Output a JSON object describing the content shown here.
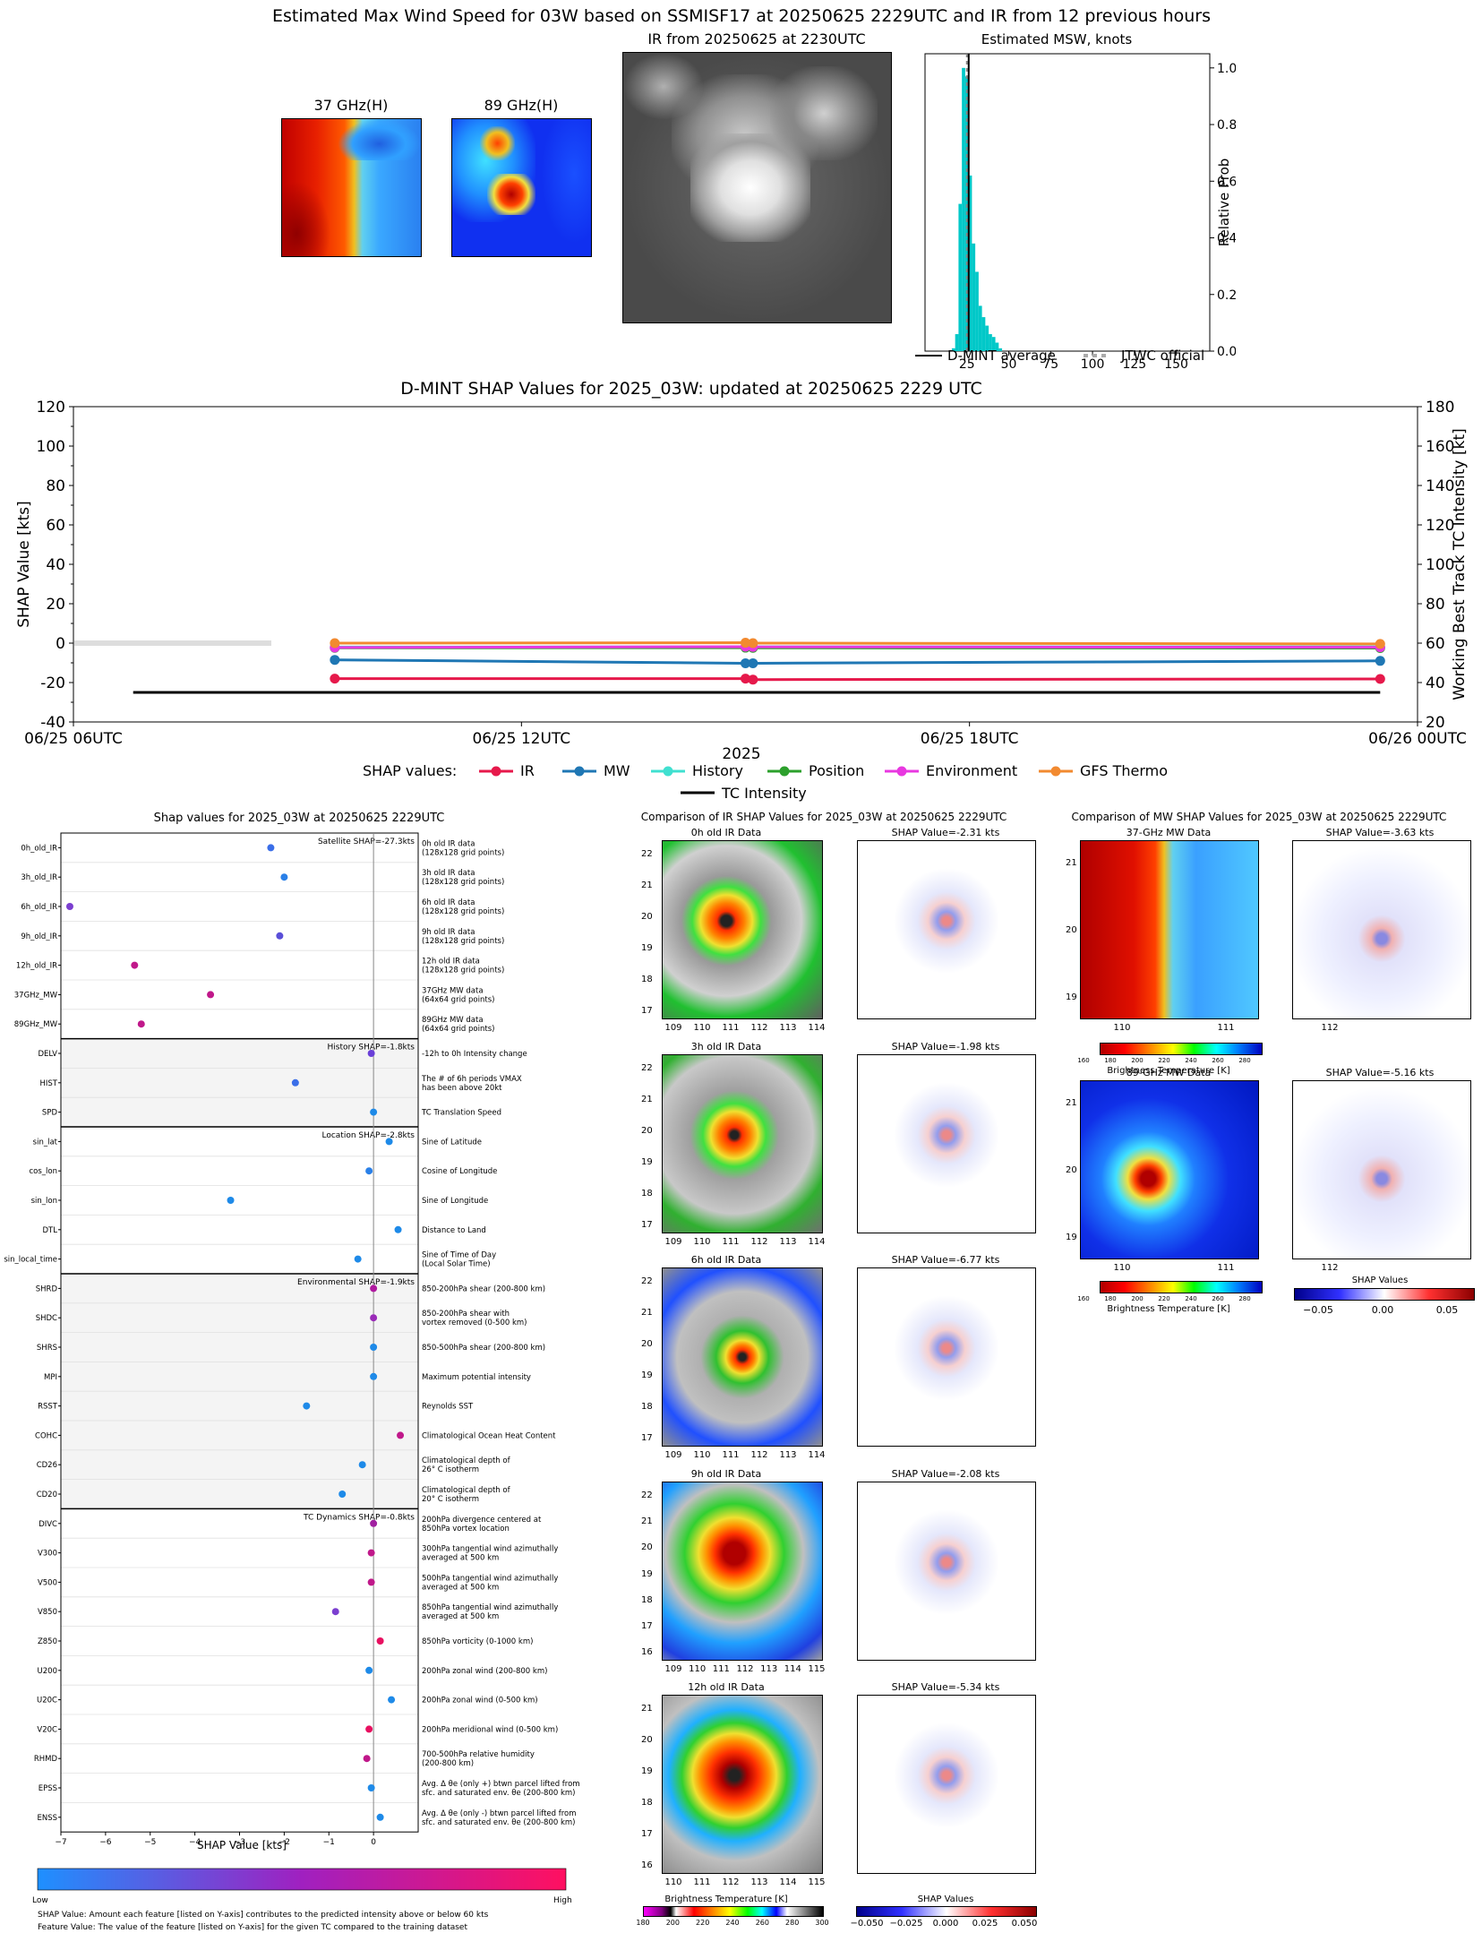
{
  "header": {
    "main_title": "Estimated Max Wind Speed for 03W based on SSMISF17 at 20250625 2229UTC and IR from 12 previous hours",
    "mw37_title": "37 GHz(H)",
    "mw89_title": "89 GHz(H)",
    "ir_title": "IR from 20250625 at 2230UTC",
    "hist_title": "Estimated MSW, knots",
    "hist_ylabel": "Relative Prob",
    "hist_legend": [
      "D-MINT average",
      "JTWC official"
    ]
  },
  "shap_timeseries": {
    "title": "D-MINT SHAP Values for 2025_03W: updated at 20250625 2229 UTC",
    "ylabel_left": "SHAP Value [kts]",
    "ylabel_right": "Working Best Track TC Intensity [kt]",
    "xlabel": "2025",
    "legend_prefix": "SHAP values:"
  },
  "bar_panel": {
    "title": "Shap values for 2025_03W at 20250625 2229UTC",
    "xlabel": "SHAP Value [kts]",
    "colorbar_low": "Low",
    "colorbar_high": "High",
    "footnote1": "SHAP Value: Amount each feature [listed on Y-axis] contributes to the predicted intensity above or below 60 kts",
    "footnote2": "Feature Value: The value of the feature [listed on Y-axis] for the given TC compared to the training dataset",
    "group_labels": [
      {
        "text": "Satellite SHAP=-27.3kts"
      },
      {
        "text": "History SHAP=-1.8kts"
      },
      {
        "text": "Location SHAP=-2.8kts"
      },
      {
        "text": "Environmental SHAP=-1.9kts"
      },
      {
        "text": "TC Dynamics SHAP=-0.8kts"
      }
    ]
  },
  "ir_comparison": {
    "title": "Comparison of IR SHAP Values for 2025_03W at 20250625 2229UTC",
    "rows": [
      {
        "label": "0h old IR Data",
        "shap": "SHAP Value=-2.31 kts",
        "xt": [
          "109",
          "110",
          "111",
          "112",
          "113",
          "114"
        ],
        "yt": [
          "22",
          "21",
          "20",
          "19",
          "18",
          "17"
        ]
      },
      {
        "label": "3h old IR Data",
        "shap": "SHAP Value=-1.98 kts",
        "xt": [
          "109",
          "110",
          "111",
          "112",
          "113",
          "114"
        ],
        "yt": [
          "22",
          "21",
          "20",
          "19",
          "18",
          "17"
        ]
      },
      {
        "label": "6h old IR Data",
        "shap": "SHAP Value=-6.77 kts",
        "xt": [
          "109",
          "110",
          "111",
          "112",
          "113",
          "114"
        ],
        "yt": [
          "22",
          "21",
          "20",
          "19",
          "18",
          "17"
        ]
      },
      {
        "label": "9h old IR Data",
        "shap": "SHAP Value=-2.08 kts",
        "xt": [
          "109",
          "110",
          "111",
          "112",
          "113",
          "114",
          "115"
        ],
        "yt": [
          "22",
          "21",
          "20",
          "19",
          "18",
          "17",
          "16"
        ]
      },
      {
        "label": "12h old IR Data",
        "shap": "SHAP Value=-5.34 kts",
        "xt": [
          "110",
          "111",
          "112",
          "113",
          "114",
          "115"
        ],
        "yt": [
          "21",
          "20",
          "19",
          "18",
          "17",
          "16"
        ]
      }
    ],
    "cbar1_label": "Brightness Temperature [K]",
    "cbar1_ticks": [
      "180",
      "200",
      "220",
      "240",
      "260",
      "280",
      "300"
    ],
    "cbar2_label": "SHAP Values",
    "cbar2_ticks": [
      "−0.050",
      "−0.025",
      "0.000",
      "0.025",
      "0.050"
    ]
  },
  "mw_comparison": {
    "title": "Comparison of MW SHAP Values for 2025_03W at 20250625 2229UTC",
    "rows": [
      {
        "label": "37-GHz MW Data",
        "shap": "SHAP Value=-3.63 kts"
      },
      {
        "label": "89-GHz MW Data",
        "shap": "SHAP Value=-5.16 kts"
      }
    ],
    "xt": [
      "110",
      "111",
      "112"
    ],
    "yt": [
      "21",
      "20",
      "19"
    ],
    "cbar_label": "Brightness Temperature [K]",
    "cbar_ticks": [
      "160",
      "180",
      "200",
      "220",
      "240",
      "260",
      "280"
    ],
    "cbar2_label": "SHAP Values",
    "cbar2_ticks": [
      "−0.05",
      "0.00",
      "0.05"
    ]
  },
  "chart_data": [
    {
      "type": "bar",
      "title": "Estimated MSW, knots",
      "ylabel": "Relative Prob",
      "xlim": [
        0,
        170
      ],
      "ylim": [
        0,
        1.05
      ],
      "xticks": [
        25,
        50,
        75,
        100,
        125,
        150
      ],
      "yticks": [
        0.0,
        0.2,
        0.4,
        0.6,
        0.8,
        1.0
      ],
      "bin_width": 2,
      "bins": [
        16,
        18,
        20,
        22,
        24,
        26,
        28,
        30,
        32,
        34,
        36,
        38,
        40,
        42,
        44
      ],
      "values": [
        0.01,
        0.06,
        0.52,
        1.0,
        0.97,
        0.62,
        0.38,
        0.28,
        0.16,
        0.12,
        0.09,
        0.06,
        0.05,
        0.03,
        0.01
      ],
      "dmint_average": 25,
      "jtwc_official": 25,
      "legend": [
        "D-MINT average",
        "JTWC official"
      ]
    },
    {
      "type": "line",
      "title": "D-MINT SHAP Values for 2025_03W: updated at 20250625 2229 UTC",
      "xlabel": "2025",
      "ylabel": "SHAP Value [kts]",
      "ylabel_right": "Working Best Track TC Intensity [kt]",
      "xticklabels": [
        "06/25 06UTC",
        "06/25 12UTC",
        "06/25 18UTC",
        "06/26 00UTC"
      ],
      "xticks_hours": [
        6,
        12,
        18,
        24
      ],
      "xlim_hours": [
        6,
        24
      ],
      "ylim": [
        -40,
        120
      ],
      "yticks": [
        -40,
        -20,
        0,
        20,
        40,
        60,
        80,
        100,
        120
      ],
      "ylim_right": [
        20,
        180
      ],
      "yticks_right": [
        20,
        40,
        60,
        80,
        100,
        120,
        140,
        160,
        180
      ],
      "x_hours": [
        9.5,
        15.0,
        15.1,
        23.5
      ],
      "series": [
        {
          "name": "IR",
          "color": "#e6194b",
          "values": [
            -18.0,
            -18.0,
            -18.5,
            -18.2
          ]
        },
        {
          "name": "MW",
          "color": "#1f77b4",
          "values": [
            -8.5,
            -10.2,
            -10.2,
            -9.0
          ]
        },
        {
          "name": "History",
          "color": "#40e0d0",
          "values": [
            -2.0,
            -1.9,
            -1.9,
            -1.9
          ]
        },
        {
          "name": "Position",
          "color": "#2ca02c",
          "values": [
            -2.4,
            -2.3,
            -2.4,
            -2.5
          ]
        },
        {
          "name": "Environment",
          "color": "#e838e0",
          "values": [
            -2.2,
            -1.8,
            -1.9,
            -2.1
          ]
        },
        {
          "name": "GFS Thermo",
          "color": "#f28a30",
          "values": [
            0.0,
            0.2,
            0.0,
            -0.4
          ]
        }
      ],
      "tc_intensity": {
        "name": "TC Intensity",
        "color": "#000000",
        "x_hours": [
          6.8,
          23.5
        ],
        "values": [
          35,
          35
        ]
      }
    },
    {
      "type": "scatter",
      "title": "Shap values for 2025_03W at 20250625 2229UTC",
      "xlabel": "SHAP Value [kts]",
      "xlim": [
        -7,
        1
      ],
      "xticks": [
        -7,
        -6,
        -5,
        -4,
        -3,
        -2,
        -1,
        0
      ],
      "colorbar": [
        "Low",
        "High"
      ],
      "features": [
        {
          "name": "0h_old_IR",
          "desc": "0h old IR data\n(128x128 grid points)",
          "shap": -2.3,
          "color": "#3a6ee8"
        },
        {
          "name": "3h_old_IR",
          "desc": "3h old IR data\n(128x128 grid points)",
          "shap": -2.0,
          "color": "#2a80e8"
        },
        {
          "name": "6h_old_IR",
          "desc": "6h old IR data\n(128x128 grid points)",
          "shap": -6.8,
          "color": "#7b3fd0"
        },
        {
          "name": "9h_old_IR",
          "desc": "9h old IR data\n(128x128 grid points)",
          "shap": -2.1,
          "color": "#5a4fd8"
        },
        {
          "name": "12h_old_IR",
          "desc": "12h old IR data\n(128x128 grid points)",
          "shap": -5.35,
          "color": "#c0188a"
        },
        {
          "name": "37GHz_MW",
          "desc": "37GHz MW data\n(64x64 grid points)",
          "shap": -3.65,
          "color": "#c0188a"
        },
        {
          "name": "89GHz_MW",
          "desc": "89GHz MW data\n(64x64 grid points)",
          "shap": -5.2,
          "color": "#c0188a"
        },
        {
          "name": "DELV",
          "desc": "-12h to 0h Intensity change",
          "shap": -0.05,
          "color": "#6a3fd8"
        },
        {
          "name": "HIST",
          "desc": "The # of 6h periods VMAX\nhas been above 20kt",
          "shap": -1.75,
          "color": "#3a6ee8"
        },
        {
          "name": "SPD",
          "desc": "TC Translation Speed",
          "shap": 0.0,
          "color": "#1e8ae8"
        },
        {
          "name": "sin_lat",
          "desc": "Sine of Latitude",
          "shap": 0.35,
          "color": "#1e8ae8"
        },
        {
          "name": "cos_lon",
          "desc": "Cosine of Longitude",
          "shap": -0.1,
          "color": "#2a80e8"
        },
        {
          "name": "sin_lon",
          "desc": "Sine of Longitude",
          "shap": -3.2,
          "color": "#1e8ae8"
        },
        {
          "name": "DTL",
          "desc": "Distance to Land",
          "shap": 0.55,
          "color": "#1e8ae8"
        },
        {
          "name": "sin_local_time",
          "desc": "Sine of Time of Day\n(Local Solar Time)",
          "shap": -0.35,
          "color": "#1e8ae8"
        },
        {
          "name": "SHRD",
          "desc": "850-200hPa shear (200-800 km)",
          "shap": 0.0,
          "color": "#b01aa0"
        },
        {
          "name": "SHDC",
          "desc": "850-200hPa shear with\nvortex removed (0-500 km)",
          "shap": 0.0,
          "color": "#9a2ab8"
        },
        {
          "name": "SHRS",
          "desc": "850-500hPa shear (200-800 km)",
          "shap": 0.0,
          "color": "#1e8ae8"
        },
        {
          "name": "MPI",
          "desc": "Maximum potential intensity",
          "shap": 0.0,
          "color": "#1e8ae8"
        },
        {
          "name": "RSST",
          "desc": "Reynolds SST",
          "shap": -1.5,
          "color": "#1e8ae8"
        },
        {
          "name": "COHC",
          "desc": "Climatological Ocean Heat Content",
          "shap": 0.6,
          "color": "#c0188a"
        },
        {
          "name": "CD26",
          "desc": "Climatological depth of\n26° C isotherm",
          "shap": -0.25,
          "color": "#1e8ae8"
        },
        {
          "name": "CD20",
          "desc": "Climatological depth of\n20° C isotherm",
          "shap": -0.7,
          "color": "#1e8ae8"
        },
        {
          "name": "DIVC",
          "desc": "200hPa divergence centered at\n850hPa vortex location",
          "shap": 0.0,
          "color": "#a020a0"
        },
        {
          "name": "V300",
          "desc": "300hPa tangential wind azimuthally\naveraged at 500 km",
          "shap": -0.05,
          "color": "#c0188a"
        },
        {
          "name": "V500",
          "desc": "500hPa tangential wind azimuthally\naveraged at 500 km",
          "shap": -0.05,
          "color": "#c0188a"
        },
        {
          "name": "V850",
          "desc": "850hPa tangential wind azimuthally\naveraged at 500 km",
          "shap": -0.85,
          "color": "#7b3fd0"
        },
        {
          "name": "Z850",
          "desc": "850hPa vorticity (0-1000 km)",
          "shap": 0.15,
          "color": "#e81060"
        },
        {
          "name": "U200",
          "desc": "200hPa zonal wind (200-800 km)",
          "shap": -0.1,
          "color": "#1e8ae8"
        },
        {
          "name": "U20C",
          "desc": "200hPa zonal wind (0-500 km)",
          "shap": 0.4,
          "color": "#1e8ae8"
        },
        {
          "name": "V20C",
          "desc": "200hPa meridional wind (0-500 km)",
          "shap": -0.1,
          "color": "#e81060"
        },
        {
          "name": "RHMD",
          "desc": "700-500hPa relative humidity\n(200-800 km)",
          "shap": -0.15,
          "color": "#c0188a"
        },
        {
          "name": "EPSS",
          "desc": "Avg. Δ θe (only +) btwn parcel lifted from\nsfc. and saturated env. θe (200-800 km)",
          "shap": -0.05,
          "color": "#1e8ae8"
        },
        {
          "name": "ENSS",
          "desc": "Avg. Δ θe (only -) btwn parcel lifted from\nsfc. and saturated env. θe (200-800 km)",
          "shap": 0.15,
          "color": "#1e8ae8"
        }
      ]
    }
  ]
}
